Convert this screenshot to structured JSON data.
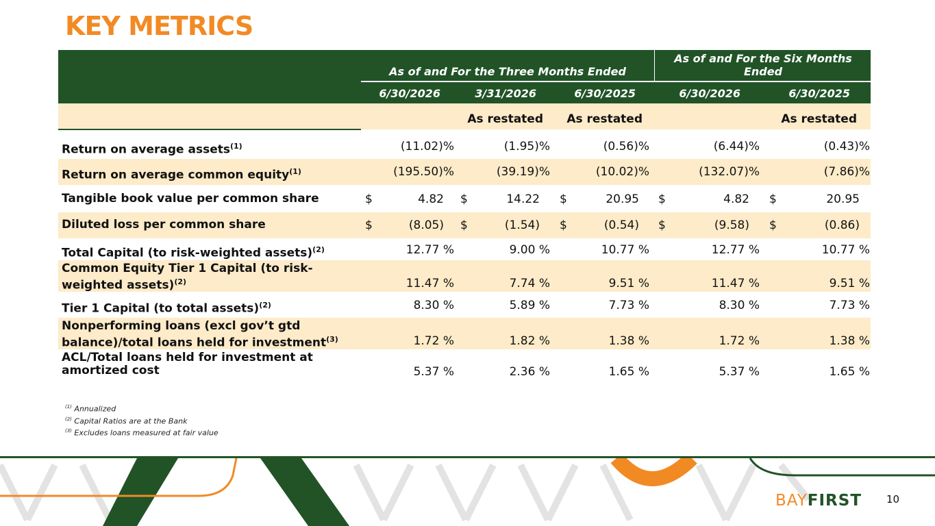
{
  "title": "KEY METRICS",
  "header": {
    "three_months": "As of and For the Three Months Ended",
    "six_months": "As of and For the Six Months Ended",
    "dates": [
      "6/30/2026",
      "3/31/2026",
      "6/30/2025",
      "6/30/2026",
      "6/30/2025"
    ],
    "restated": [
      "",
      "As restated",
      "As restated",
      "",
      "As restated"
    ]
  },
  "rows": [
    {
      "label": "Return on average assets",
      "sup": "(1)",
      "values": [
        "(11.02)%",
        "(1.95)%",
        "(0.56)%",
        "(6.44)%",
        "(0.43)%"
      ]
    },
    {
      "label": "Return on average common equity",
      "sup": "(1)",
      "values": [
        "(195.50)%",
        "(39.19)%",
        "(10.02)%",
        "(132.07)%",
        "(7.86)%"
      ]
    },
    {
      "label": "Tangible book value per common share",
      "sup": "",
      "currency": "$",
      "values": [
        "4.82",
        "14.22",
        "20.95",
        "4.82",
        "20.95"
      ]
    },
    {
      "label": "Diluted loss per common share",
      "sup": "",
      "currency": "$",
      "values": [
        "(8.05)",
        "(1.54)",
        "(0.54)",
        "(9.58)",
        "(0.86)"
      ]
    },
    {
      "label": "Total Capital (to risk-weighted assets)",
      "sup": "(2)",
      "values": [
        "12.77 %",
        "9.00 %",
        "10.77 %",
        "12.77 %",
        "10.77 %"
      ]
    },
    {
      "label_line1": "Common Equity Tier 1 Capital (to risk-",
      "label_line2": "weighted assets)",
      "sup": "(2)",
      "values": [
        "11.47 %",
        "7.74 %",
        "9.51 %",
        "11.47 %",
        "9.51 %"
      ]
    },
    {
      "label": "Tier 1 Capital (to total assets)",
      "sup": "(2)",
      "values": [
        "8.30 %",
        "5.89 %",
        "7.73 %",
        "8.30 %",
        "7.73 %"
      ]
    },
    {
      "label_line1": "Nonperforming loans (excl gov’t gtd",
      "label_line2": "balance)/total loans held for investment",
      "sup": "(3)",
      "values": [
        "1.72 %",
        "1.82 %",
        "1.38 %",
        "1.72 %",
        "1.38 %"
      ]
    },
    {
      "label_line1": "ACL/Total loans held for investment at",
      "label_line2": "amortized cost",
      "sup": "",
      "values": [
        "5.37 %",
        "2.36 %",
        "1.65 %",
        "5.37 %",
        "1.65 %"
      ]
    }
  ],
  "footnotes": [
    {
      "sup": "(1)",
      "text": "Annualized"
    },
    {
      "sup": "(2)",
      "text": "Capital Ratios are at the Bank"
    },
    {
      "sup": "(3)",
      "text": "Excludes loans measured at fair value"
    }
  ],
  "logo": {
    "part1": "BAY",
    "part2": "FIRST"
  },
  "page_number": "10",
  "colors": {
    "green": "#215327",
    "orange": "#f28a24",
    "shade": "#fdebc9"
  }
}
